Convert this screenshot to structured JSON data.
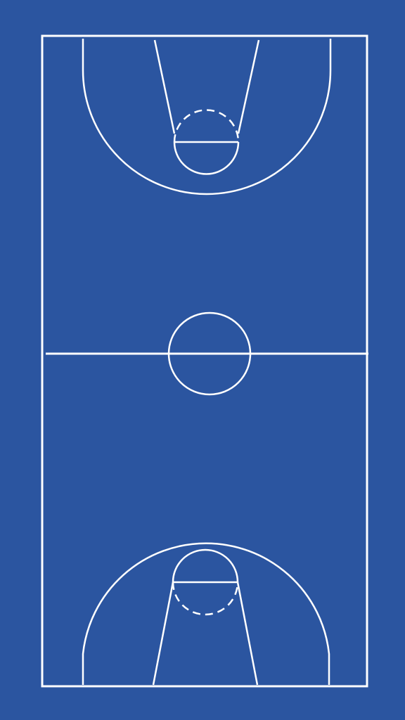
{
  "court": {
    "sport": "basketball",
    "orientation": "vertical",
    "view": "full-court",
    "colors": {
      "floor": "#2b55a0",
      "lines": "#ffffff"
    },
    "elements": [
      "boundary-lines",
      "half-court-line",
      "center-circle",
      "top-three-point-line",
      "top-key-lane",
      "top-free-throw-line",
      "top-free-throw-circle",
      "bottom-three-point-line",
      "bottom-key-lane",
      "bottom-free-throw-line",
      "bottom-free-throw-circle"
    ]
  }
}
